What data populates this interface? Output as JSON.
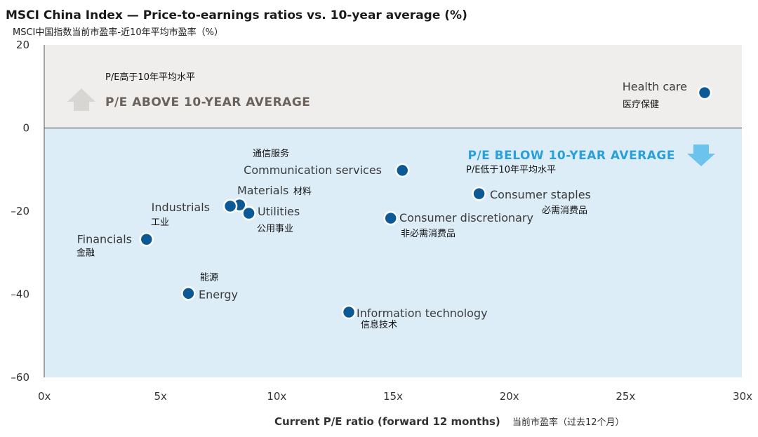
{
  "chart_data": {
    "type": "scatter",
    "title": "MSCI China Index — Price-to-earnings ratios vs. 10-year average (%)",
    "subtitle": "MSCI中国指数当前市盈率-近10年平均市盈率（%）",
    "xlabel": "Current P/E ratio (forward 12 months)",
    "xlabel_cn": "当前市盈率（过去12个月）",
    "xlim": [
      0,
      30
    ],
    "ylim": [
      -60,
      20
    ],
    "x_ticks": [
      {
        "value": 0,
        "label": "0x"
      },
      {
        "value": 5,
        "label": "5x"
      },
      {
        "value": 10,
        "label": "10x"
      },
      {
        "value": 15,
        "label": "15x"
      },
      {
        "value": 20,
        "label": "20x"
      },
      {
        "value": 25,
        "label": "25x"
      },
      {
        "value": 30,
        "label": "30x"
      }
    ],
    "y_ticks": [
      {
        "value": 20,
        "label": "20"
      },
      {
        "value": 0,
        "label": "0"
      },
      {
        "value": -20,
        "label": "–20"
      },
      {
        "value": -40,
        "label": "–40"
      },
      {
        "value": -60,
        "label": "–60"
      }
    ],
    "zones": {
      "above": {
        "label": "P/E ABOVE 10-YEAR AVERAGE",
        "label_cn": "P/E高于10年平均水平",
        "color": "#efeeec"
      },
      "below": {
        "label": "P/E BELOW 10-YEAR AVERAGE",
        "label_cn": "P/E低于10年平均水平",
        "color": "#ddedf8"
      }
    },
    "marker_color": "#0b5a96",
    "points": [
      {
        "name": "Health care",
        "name_cn": "医疗保健",
        "x": 28.4,
        "y": 8.5
      },
      {
        "name": "Communication services",
        "name_cn": "通信服务",
        "x": 15.4,
        "y": -10.2
      },
      {
        "name": "Consumer staples",
        "name_cn": "必需消费品",
        "x": 18.7,
        "y": -15.8
      },
      {
        "name": "Materials",
        "name_cn": "材料",
        "x": 8.4,
        "y": -18.5
      },
      {
        "name": "Industrials",
        "name_cn": "工业",
        "x": 8.0,
        "y": -18.8
      },
      {
        "name": "Utilities",
        "name_cn": "公用事业",
        "x": 8.8,
        "y": -20.5
      },
      {
        "name": "Consumer discretionary",
        "name_cn": "非必需消费品",
        "x": 14.9,
        "y": -21.7
      },
      {
        "name": "Financials",
        "name_cn": "金融",
        "x": 4.4,
        "y": -26.8
      },
      {
        "name": "Energy",
        "name_cn": "能源",
        "x": 6.2,
        "y": -39.8
      },
      {
        "name": "Information technology",
        "name_cn": "信息技术",
        "x": 13.1,
        "y": -44.3
      }
    ]
  }
}
